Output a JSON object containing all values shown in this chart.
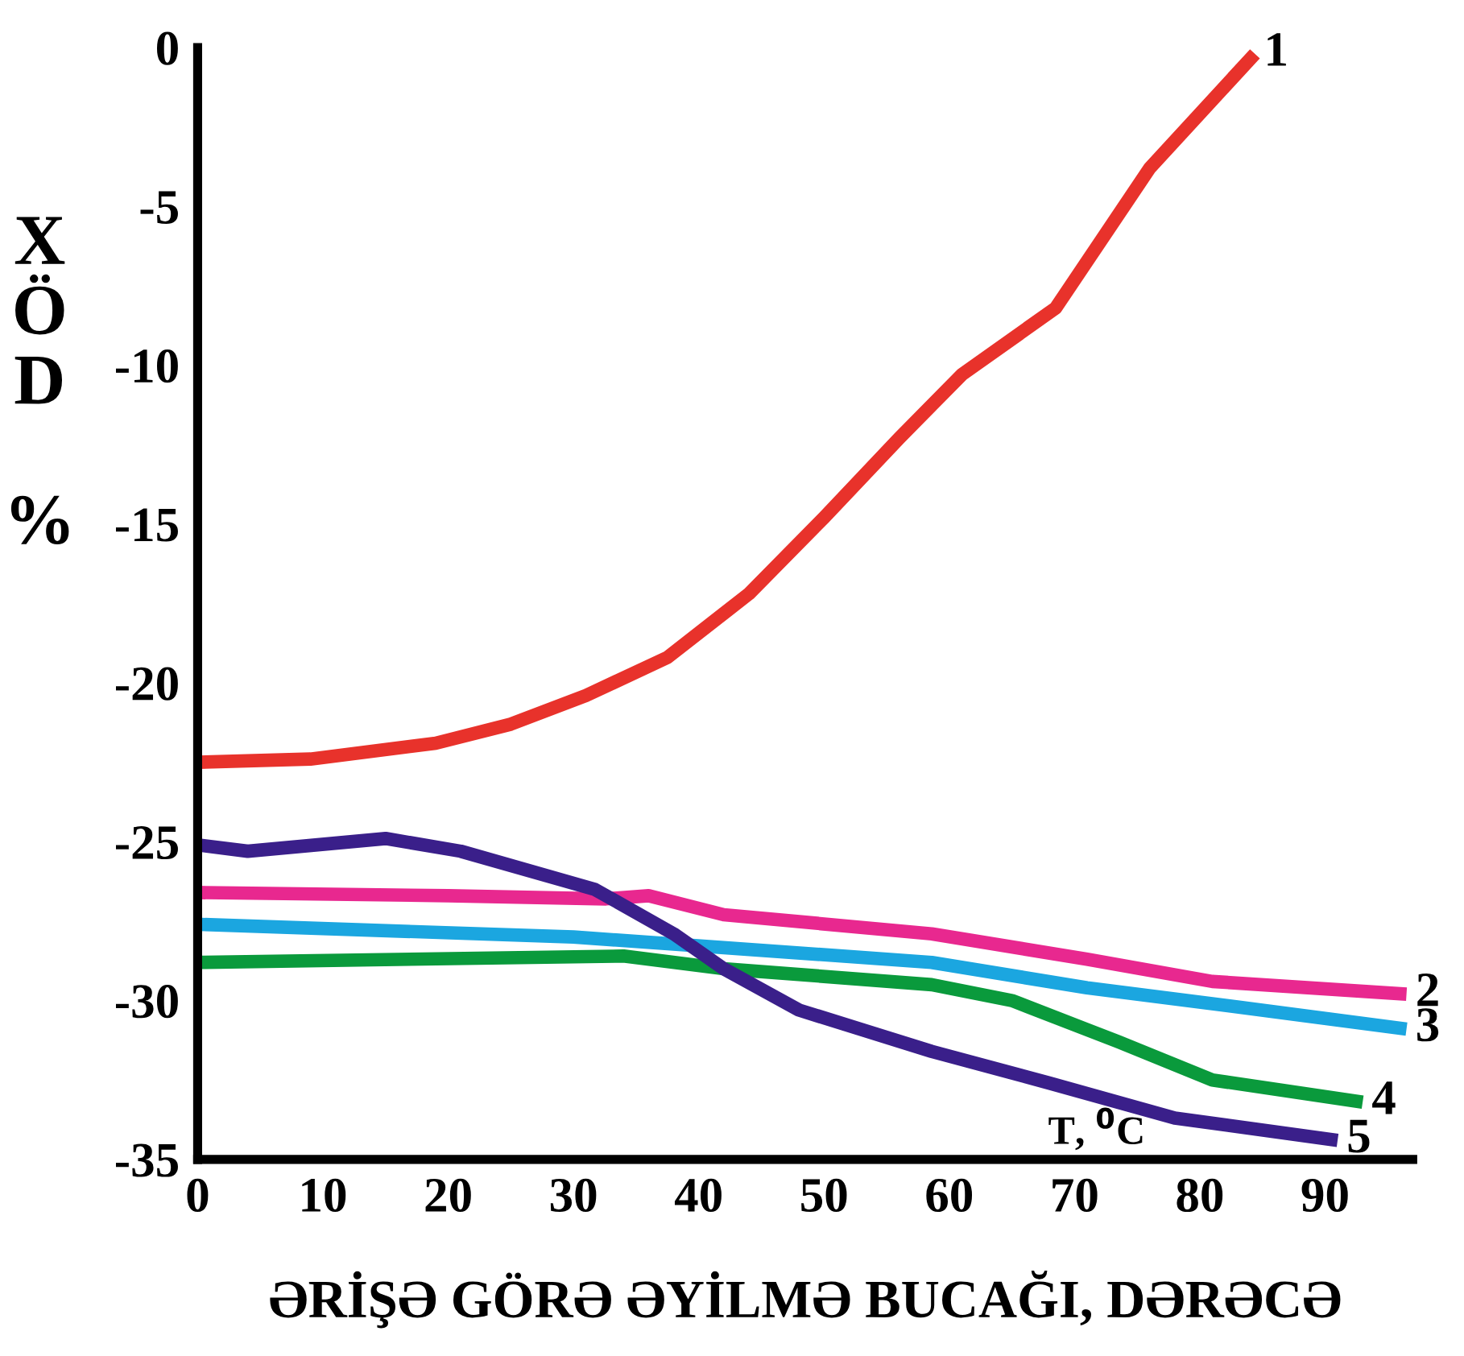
{
  "chart_data": {
    "type": "line",
    "xlabel": "ƏRİŞƏ GÖRƏ ƏYİLMƏ BUCAĞI, DƏRƏCƏ",
    "ylabel": "XÖD %",
    "xlim": [
      0,
      97
    ],
    "ylim": [
      -35,
      0
    ],
    "xticks": [
      0,
      10,
      20,
      30,
      40,
      50,
      60,
      70,
      80,
      90
    ],
    "yticks": [
      0,
      -5,
      -10,
      -15,
      -20,
      -25,
      -30,
      -35
    ],
    "grid": false,
    "legend": false,
    "marker": "none",
    "line_style": "solid",
    "annotations": [
      "T, $^{0}$C"
    ],
    "series": [
      {
        "name": "1",
        "color": "#e8322b",
        "x": [
          0,
          9,
          19,
          25,
          31,
          37.5,
          44,
          50,
          56,
          61,
          68.5,
          76,
          84.4
        ],
        "values": [
          -22.5,
          -22.4,
          -21.9,
          -21.3,
          -20.4,
          -19.2,
          -17.2,
          -14.8,
          -12.3,
          -10.3,
          -8.2,
          -3.8,
          -0.2
        ]
      },
      {
        "name": "2",
        "color": "#e8288f",
        "x": [
          0,
          20,
          32.6,
          36,
          42,
          58.6,
          71,
          81,
          96.5
        ],
        "values": [
          -26.6,
          -26.7,
          -26.8,
          -26.7,
          -27.3,
          -27.9,
          -28.7,
          -29.4,
          -29.8
        ]
      },
      {
        "name": "3",
        "color": "#1ba6e0",
        "x": [
          0,
          30,
          58.6,
          71,
          83,
          96.5
        ],
        "values": [
          -27.6,
          -28.0,
          -28.8,
          -29.6,
          -30.2,
          -30.9
        ]
      },
      {
        "name": "4",
        "color": "#0a9a3c",
        "x": [
          0,
          34,
          42,
          58.6,
          65,
          73.5,
          81,
          93
        ],
        "values": [
          -28.8,
          -28.6,
          -29.0,
          -29.5,
          -30.0,
          -31.3,
          -32.5,
          -33.2
        ]
      },
      {
        "name": "5",
        "color": "#3a1f8a",
        "x": [
          0,
          4,
          15,
          21,
          31.7,
          38,
          42,
          48,
          58.6,
          68,
          78,
          91
        ],
        "values": [
          -25.1,
          -25.3,
          -24.9,
          -25.3,
          -26.5,
          -27.9,
          -29.0,
          -30.3,
          -31.6,
          -32.6,
          -33.7,
          -34.4
        ]
      }
    ]
  }
}
